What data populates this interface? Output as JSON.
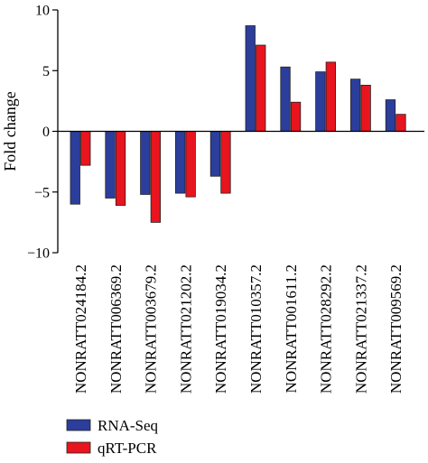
{
  "chart_data": {
    "type": "bar",
    "title": "",
    "xlabel": "",
    "ylabel": "Fold change",
    "ylim": [
      -10,
      10
    ],
    "yticks": [
      10,
      5,
      0,
      -5,
      -10
    ],
    "ytick_labels": [
      "10",
      "5",
      "0",
      "−5",
      "−10"
    ],
    "grid": false,
    "legend_position": "bottom-left",
    "categories": [
      "NONRATT024184.2",
      "NONRATT006369.2",
      "NONRATT003679.2",
      "NONRATT021202.2",
      "NONRATT019034.2",
      "NONRATT010357.2",
      "NONRATT001611.2",
      "NONRATT028292.2",
      "NONRATT021337.2",
      "NONRATT009569.2"
    ],
    "series": [
      {
        "name": "RNA-Seq",
        "color": "#2c3e9c",
        "values": [
          -6.0,
          -5.5,
          -5.2,
          -5.1,
          -3.7,
          8.7,
          5.3,
          4.9,
          4.3,
          2.6
        ]
      },
      {
        "name": "qRT-PCR",
        "color": "#e8141e",
        "values": [
          -2.8,
          -6.1,
          -7.5,
          -5.4,
          -5.1,
          7.1,
          2.4,
          5.7,
          3.8,
          1.4
        ]
      }
    ]
  }
}
